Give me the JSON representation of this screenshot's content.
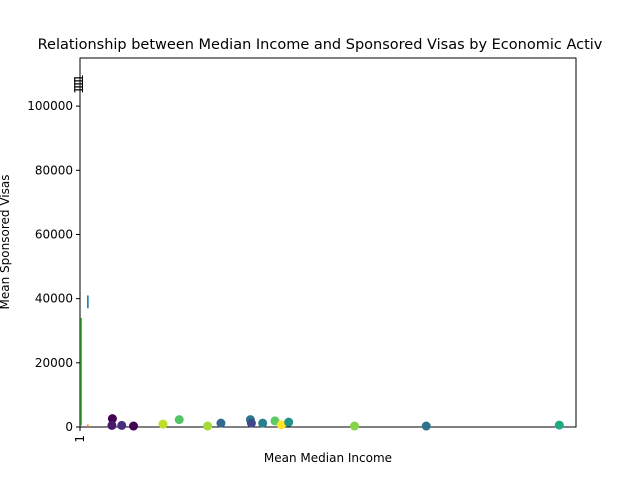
{
  "chart_data": {
    "type": "scatter",
    "title": "Relationship between Median Income and Sponsored Visas by Economic Activ",
    "xlabel": "Mean Median Income",
    "ylabel": "Mean Sponsored Visas",
    "ylim": [
      0,
      115000
    ],
    "y_ticks": [
      0,
      20000,
      40000,
      60000,
      80000,
      100000
    ],
    "y_tick_labels": [
      "0",
      "20000",
      "40000",
      "60000",
      "80000",
      "100000"
    ],
    "x_tick_labels": [
      "1"
    ],
    "overflow_labels": [
      "1",
      "1",
      "1",
      "1",
      "1"
    ],
    "points": [
      {
        "x": 6.6,
        "y": 2600,
        "color": "#440154"
      },
      {
        "x": 6.5,
        "y": 500,
        "color": "#481a6c"
      },
      {
        "x": 8.5,
        "y": 500,
        "color": "#472f7d"
      },
      {
        "x": 10.9,
        "y": 300,
        "color": "#440154"
      },
      {
        "x": 16.9,
        "y": 900,
        "color": "#bddf26"
      },
      {
        "x": 20.2,
        "y": 2300,
        "color": "#52c569"
      },
      {
        "x": 26.0,
        "y": 300,
        "color": "#a5db36"
      },
      {
        "x": 28.7,
        "y": 1200,
        "color": "#31688e"
      },
      {
        "x": 34.7,
        "y": 2300,
        "color": "#2a788e"
      },
      {
        "x": 34.9,
        "y": 1200,
        "color": "#3e4989"
      },
      {
        "x": 37.2,
        "y": 1200,
        "color": "#26828e"
      },
      {
        "x": 39.7,
        "y": 1900,
        "color": "#5ec962"
      },
      {
        "x": 41.0,
        "y": 700,
        "color": "#fde725"
      },
      {
        "x": 42.5,
        "y": 1500,
        "color": "#21918c"
      },
      {
        "x": 55.9,
        "y": 300,
        "color": "#86d549"
      },
      {
        "x": 70.5,
        "y": 300,
        "color": "#2c728e"
      },
      {
        "x": 97.6,
        "y": 600,
        "color": "#22a884"
      }
    ],
    "vertical_marks": [
      {
        "x": 1.6,
        "y1": 37000,
        "y2": 41000,
        "color": "#1f77b4"
      },
      {
        "x": 1.6,
        "y1": 0,
        "y2": 800,
        "color": "#ff7f0e"
      },
      {
        "x": 0.2,
        "y1": 500,
        "y2": 34000,
        "color": "#2ca02c"
      }
    ],
    "xlim": [
      0,
      101
    ],
    "grid": false,
    "legend": "none"
  }
}
